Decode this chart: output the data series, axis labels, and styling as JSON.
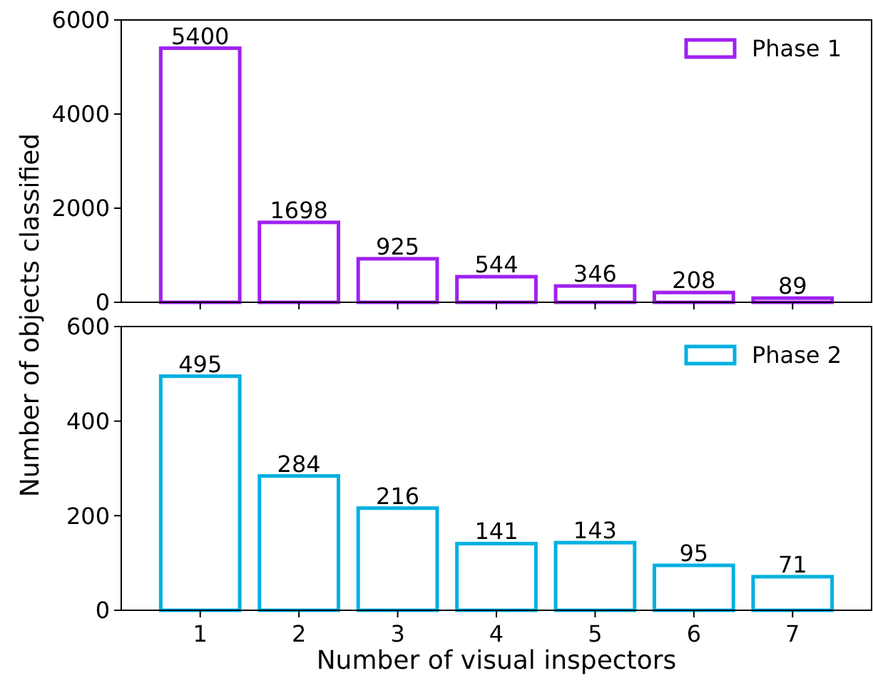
{
  "chart_data": [
    {
      "type": "bar",
      "categories": [
        "1",
        "2",
        "3",
        "4",
        "5",
        "6",
        "7"
      ],
      "series": [
        {
          "name": "Phase 1",
          "color": "#a020f0",
          "values": [
            5400,
            1698,
            925,
            544,
            346,
            208,
            89
          ]
        }
      ],
      "ylim": [
        0,
        6000
      ],
      "yticks": [
        0,
        2000,
        4000,
        6000
      ],
      "ylabel": "Number of objects classified",
      "data_labels": true,
      "legend": "top right",
      "tick_labels": "y",
      "grid": false
    },
    {
      "type": "bar",
      "categories": [
        "1",
        "2",
        "3",
        "4",
        "5",
        "6",
        "7"
      ],
      "series": [
        {
          "name": "Phase 2",
          "color": "#00b0e0",
          "values": [
            495,
            284,
            216,
            141,
            143,
            95,
            71
          ]
        }
      ],
      "ylim": [
        0,
        600
      ],
      "yticks": [
        0,
        200,
        400,
        600
      ],
      "xlabel": "Number of visual inspectors",
      "data_labels": true,
      "legend": "top right",
      "grid": false
    }
  ]
}
